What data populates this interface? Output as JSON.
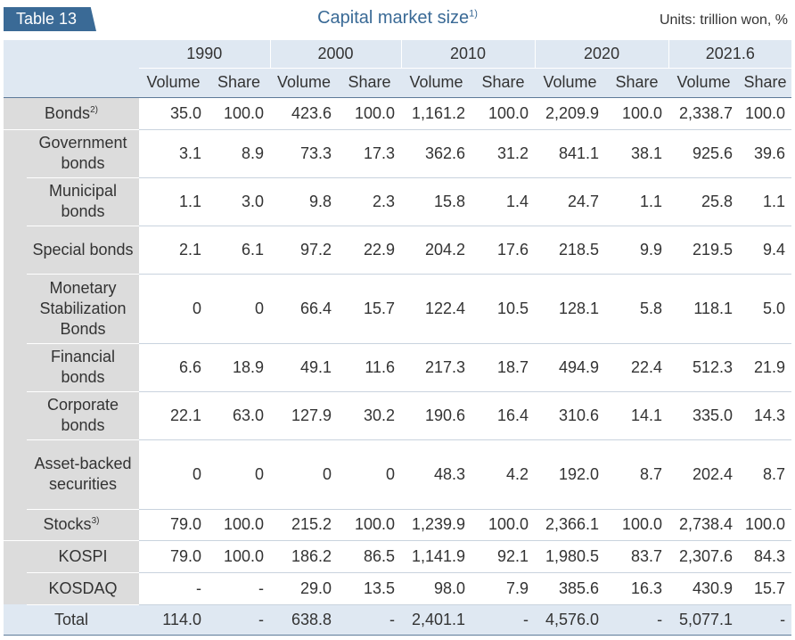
{
  "table_tag": "Table 13",
  "title": "Capital market size",
  "title_note": "1)",
  "units": "Units: trillion won, %",
  "years": [
    "1990",
    "2000",
    "2010",
    "2020",
    "2021.6"
  ],
  "subheaders": [
    "Volume",
    "Share",
    "Volume",
    "Share",
    "Volume",
    "Share",
    "Volume",
    "Share",
    "Volume",
    "Share"
  ],
  "rows": [
    {
      "label": "Bonds",
      "note": "2)",
      "level": 0,
      "height": 36,
      "cells": [
        "35.0",
        "100.0",
        "423.6",
        "100.0",
        "1,161.2",
        "100.0",
        "2,209.9",
        "100.0",
        "2,338.7",
        "100.0"
      ]
    },
    {
      "label": "Government bonds",
      "note": "",
      "level": 1,
      "height": 54,
      "cells": [
        "3.1",
        "8.9",
        "73.3",
        "17.3",
        "362.6",
        "31.2",
        "841.1",
        "38.1",
        "925.6",
        "39.6"
      ]
    },
    {
      "label": "Municipal bonds",
      "note": "",
      "level": 1,
      "height": 54,
      "cells": [
        "1.1",
        "3.0",
        "9.8",
        "2.3",
        "15.8",
        "1.4",
        "24.7",
        "1.1",
        "25.8",
        "1.1"
      ]
    },
    {
      "label": "Special bonds",
      "note": "",
      "level": 1,
      "height": 54,
      "cells": [
        "2.1",
        "6.1",
        "97.2",
        "22.9",
        "204.2",
        "17.6",
        "218.5",
        "9.9",
        "219.5",
        "9.4"
      ]
    },
    {
      "label": "Monetary Stabilization Bonds",
      "note": "",
      "level": 1,
      "height": 78,
      "cells": [
        "0",
        "0",
        "66.4",
        "15.7",
        "122.4",
        "10.5",
        "128.1",
        "5.8",
        "118.1",
        "5.0"
      ]
    },
    {
      "label": "Financial bonds",
      "note": "",
      "level": 1,
      "height": 54,
      "cells": [
        "6.6",
        "18.9",
        "49.1",
        "11.6",
        "217.3",
        "18.7",
        "494.9",
        "22.4",
        "512.3",
        "21.9"
      ]
    },
    {
      "label": "Corporate bonds",
      "note": "",
      "level": 1,
      "height": 54,
      "cells": [
        "22.1",
        "63.0",
        "127.9",
        "30.2",
        "190.6",
        "16.4",
        "310.6",
        "14.1",
        "335.0",
        "14.3"
      ]
    },
    {
      "label": "Asset-backed securities",
      "note": "",
      "level": 1,
      "height": 78,
      "cells": [
        "0",
        "0",
        "0",
        "0",
        "48.3",
        "4.2",
        "192.0",
        "8.7",
        "202.4",
        "8.7"
      ]
    },
    {
      "label": "Stocks",
      "note": "3)",
      "level": 0,
      "height": 35,
      "cells": [
        "79.0",
        "100.0",
        "215.2",
        "100.0",
        "1,239.9",
        "100.0",
        "2,366.1",
        "100.0",
        "2,738.4",
        "100.0"
      ]
    },
    {
      "label": "KOSPI",
      "note": "",
      "level": 1,
      "height": 36,
      "cells": [
        "79.0",
        "100.0",
        "186.2",
        "86.5",
        "1,141.9",
        "92.1",
        "1,980.5",
        "83.7",
        "2,307.6",
        "84.3"
      ]
    },
    {
      "label": "KOSDAQ",
      "note": "",
      "level": 1,
      "height": 36,
      "cells": [
        "-",
        "-",
        "29.0",
        "13.5",
        "98.0",
        "7.9",
        "385.6",
        "16.3",
        "430.9",
        "15.7"
      ]
    },
    {
      "label": "Total",
      "note": "",
      "level": 0,
      "total": true,
      "height": 34,
      "cells": [
        "114.0",
        "-",
        "638.8",
        "-",
        "2,401.1",
        "-",
        "4,576.0",
        "-",
        "5,077.1",
        "-"
      ]
    }
  ]
}
